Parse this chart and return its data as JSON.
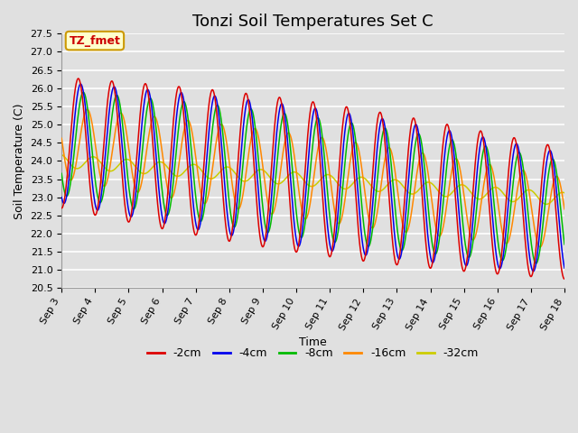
{
  "title": "Tonzi Soil Temperatures Set C",
  "xlabel": "Time",
  "ylabel": "Soil Temperature (C)",
  "ylim": [
    20.5,
    27.5
  ],
  "series_colors": {
    "-2cm": "#dd0000",
    "-4cm": "#0000ee",
    "-8cm": "#00bb00",
    "-16cm": "#ff8800",
    "-32cm": "#cccc00"
  },
  "legend_label": "TZ_fmet",
  "legend_bg": "#ffffcc",
  "legend_border": "#cc9900",
  "bg_color": "#e0e0e0",
  "plot_bg": "#e0e0e0",
  "grid_color": "#ffffff",
  "title_fontsize": 13,
  "axis_fontsize": 9,
  "tick_fontsize": 8
}
